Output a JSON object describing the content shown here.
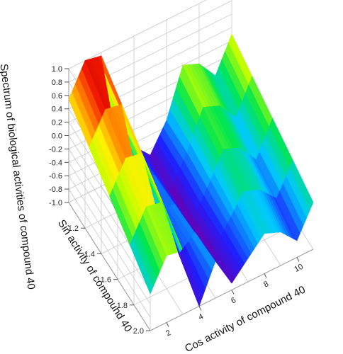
{
  "chart_data": {
    "type": "surface3d",
    "title": "",
    "xlabel": "Cos activity of compound 40",
    "ylabel": "Sin activity of compound 40",
    "zlabel": "Spectrum of biological activities of compound 40",
    "x_ticks": [
      "2",
      "4",
      "6",
      "8",
      "10"
    ],
    "y_ticks": [
      "1.2",
      "1.4",
      "1.6",
      "1.8",
      "2.0"
    ],
    "z_ticks": [
      "-1.0",
      "-0.8",
      "-0.6",
      "-0.4",
      "-0.2",
      "0.0",
      "0.2",
      "0.4",
      "0.6",
      "0.8",
      "1.0"
    ],
    "xlim": [
      1,
      11
    ],
    "ylim": [
      1.0,
      2.0
    ],
    "zlim": [
      -1.0,
      1.0
    ],
    "colormap": "rainbow",
    "grid": true,
    "surface_rows": [
      {
        "y": 1.0,
        "x": [
          1,
          2,
          3,
          4,
          5,
          6,
          7,
          8,
          9,
          10,
          11
        ],
        "z": [
          0.54,
          1.0,
          0.95,
          -0.5,
          -0.65,
          -0.9,
          -0.5,
          0.2,
          0.1,
          -0.2,
          0.3
        ]
      },
      {
        "y": 1.25,
        "x": [
          1,
          2,
          3,
          4,
          5,
          6,
          7,
          8,
          9,
          10,
          11
        ],
        "z": [
          0.3,
          0.75,
          0.7,
          -0.55,
          -0.6,
          -0.95,
          -0.5,
          0.05,
          -0.05,
          -0.35,
          0.15
        ]
      },
      {
        "y": 1.5,
        "x": [
          1,
          2,
          3,
          4,
          5,
          6,
          7,
          8,
          9,
          10,
          11
        ],
        "z": [
          0.05,
          0.5,
          0.45,
          -0.6,
          -0.55,
          -1.0,
          -0.55,
          -0.1,
          -0.2,
          -0.5,
          0.0
        ]
      },
      {
        "y": 1.75,
        "x": [
          1,
          2,
          3,
          4,
          5,
          6,
          7,
          8,
          9,
          10,
          11
        ],
        "z": [
          -0.2,
          0.25,
          0.2,
          -0.7,
          -0.5,
          -0.95,
          -0.6,
          -0.25,
          -0.35,
          -0.6,
          -0.15
        ]
      },
      {
        "y": 2.0,
        "x": [
          1,
          2,
          3,
          4,
          5,
          6,
          7,
          8,
          9,
          10,
          11
        ],
        "z": [
          -0.45,
          0.0,
          -0.05,
          -1.0,
          -0.45,
          -0.9,
          -0.65,
          -0.4,
          -0.5,
          -0.75,
          -0.3
        ]
      }
    ]
  }
}
